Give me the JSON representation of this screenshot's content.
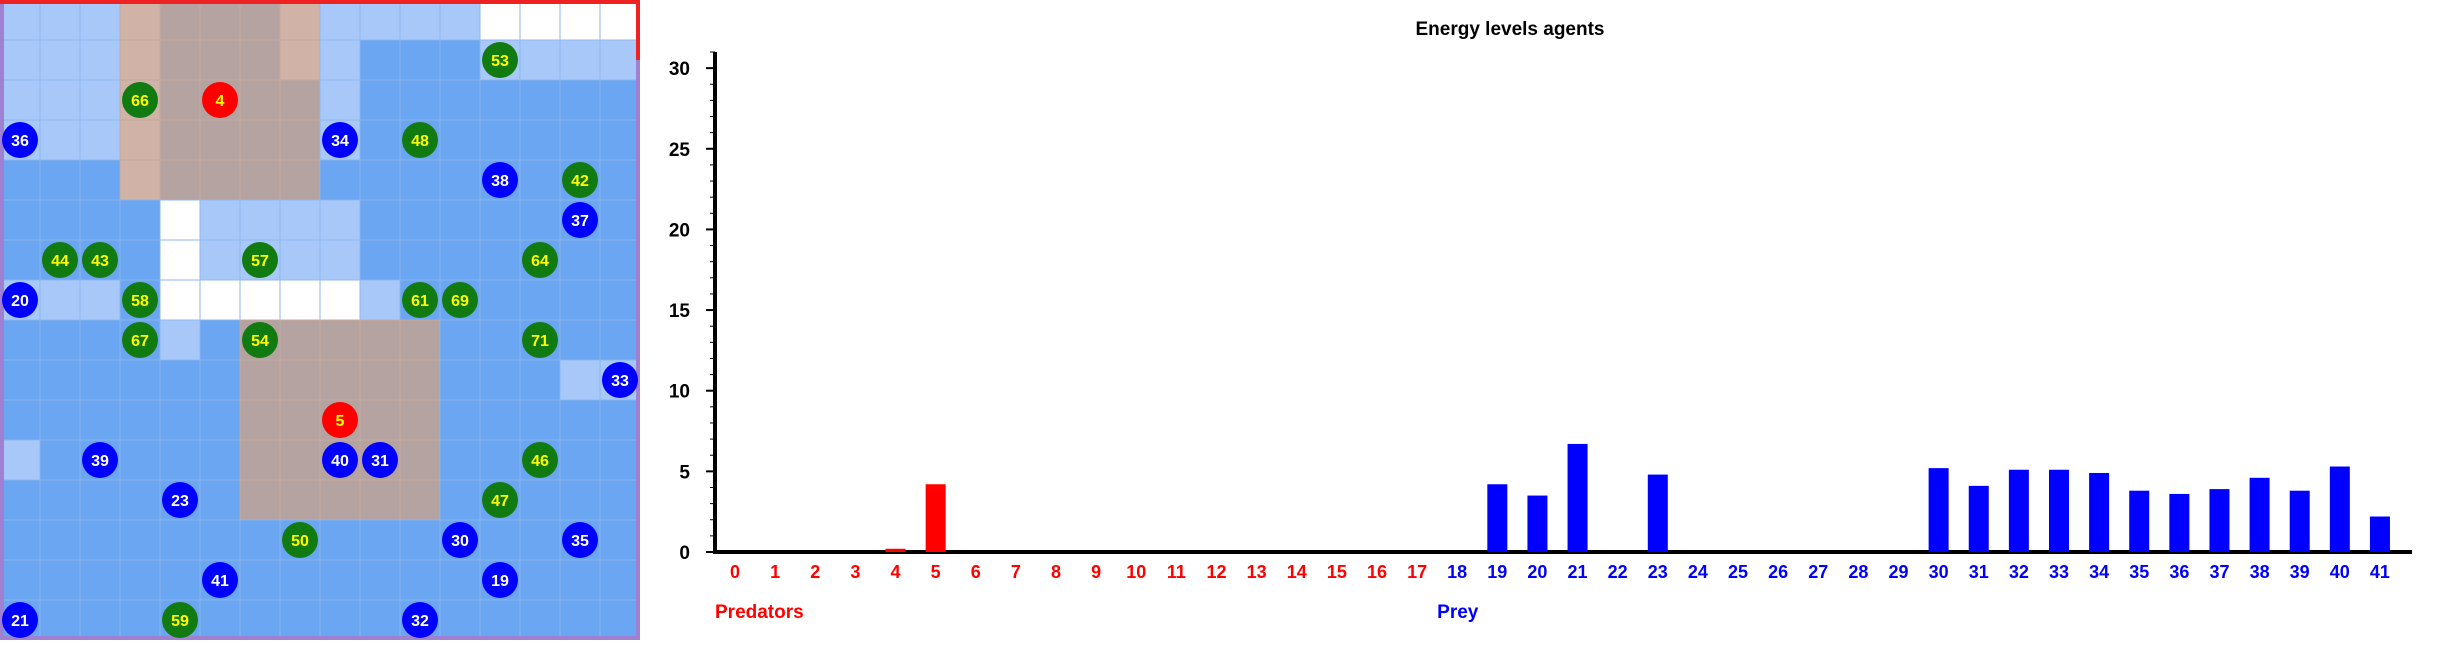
{
  "colors": {
    "predator": "#ff0000",
    "prey": "#0000ff",
    "grass_agent": "#117a11",
    "agent_label": "#ffff00",
    "prey_label": "#ffffff",
    "grid_border_top": "#ee2222",
    "grid_border_other": "#a080d0"
  },
  "grid": {
    "rows": 16,
    "cols": 16,
    "cell_levels": [
      [
        1,
        1,
        1,
        1,
        2,
        2,
        2,
        1,
        1,
        1,
        1,
        1,
        0,
        0,
        0,
        0
      ],
      [
        1,
        1,
        1,
        1,
        2,
        2,
        2,
        1,
        1,
        2,
        2,
        2,
        1,
        1,
        1,
        1
      ],
      [
        1,
        1,
        1,
        1,
        2,
        2,
        2,
        2,
        1,
        2,
        2,
        2,
        2,
        2,
        2,
        2
      ],
      [
        1,
        1,
        1,
        1,
        2,
        2,
        2,
        2,
        1,
        2,
        2,
        2,
        2,
        2,
        2,
        2
      ],
      [
        2,
        2,
        2,
        1,
        2,
        2,
        2,
        2,
        2,
        2,
        2,
        2,
        2,
        2,
        2,
        2
      ],
      [
        2,
        2,
        2,
        2,
        0,
        1,
        1,
        1,
        1,
        2,
        2,
        2,
        2,
        2,
        2,
        2
      ],
      [
        2,
        2,
        2,
        2,
        0,
        1,
        1,
        1,
        1,
        2,
        2,
        2,
        2,
        2,
        2,
        2
      ],
      [
        1,
        1,
        1,
        2,
        0,
        0,
        0,
        0,
        0,
        1,
        2,
        2,
        2,
        2,
        2,
        2
      ],
      [
        2,
        2,
        2,
        2,
        1,
        2,
        2,
        2,
        2,
        2,
        2,
        2,
        2,
        2,
        2,
        2
      ],
      [
        2,
        2,
        2,
        2,
        2,
        2,
        2,
        2,
        2,
        2,
        2,
        2,
        2,
        2,
        1,
        1
      ],
      [
        2,
        2,
        2,
        2,
        2,
        2,
        2,
        2,
        2,
        2,
        2,
        2,
        2,
        2,
        2,
        2
      ],
      [
        1,
        2,
        2,
        2,
        2,
        2,
        2,
        2,
        2,
        2,
        2,
        2,
        2,
        2,
        2,
        2
      ],
      [
        2,
        2,
        2,
        2,
        2,
        2,
        2,
        2,
        2,
        2,
        2,
        2,
        2,
        2,
        2,
        2
      ],
      [
        2,
        2,
        2,
        2,
        2,
        2,
        2,
        2,
        2,
        2,
        2,
        2,
        2,
        2,
        2,
        2
      ],
      [
        2,
        2,
        2,
        2,
        2,
        2,
        2,
        2,
        2,
        2,
        2,
        2,
        2,
        2,
        2,
        2
      ],
      [
        2,
        2,
        2,
        2,
        2,
        2,
        2,
        2,
        2,
        2,
        2,
        2,
        2,
        2,
        2,
        2
      ]
    ],
    "cell_colors": [
      "#ffffff",
      "#a8c8fa",
      "#6aa6f2"
    ],
    "predator_zone_color": "#f2a060",
    "predator_zones": [
      {
        "row": 0,
        "col": 3,
        "rows": 5,
        "cols": 5
      },
      {
        "row": 8,
        "col": 6,
        "rows": 5,
        "cols": 5
      }
    ],
    "agents": [
      {
        "id": "4",
        "kind": "predator",
        "row": 2,
        "col": 5
      },
      {
        "id": "5",
        "kind": "predator",
        "row": 10,
        "col": 8
      },
      {
        "id": "53",
        "kind": "grass",
        "row": 1,
        "col": 12
      },
      {
        "id": "66",
        "kind": "grass",
        "row": 2,
        "col": 3
      },
      {
        "id": "36",
        "kind": "prey",
        "row": 3,
        "col": 0
      },
      {
        "id": "34",
        "kind": "prey",
        "row": 3,
        "col": 8
      },
      {
        "id": "48",
        "kind": "grass",
        "row": 3,
        "col": 10
      },
      {
        "id": "38",
        "kind": "prey",
        "row": 4,
        "col": 12
      },
      {
        "id": "42",
        "kind": "grass",
        "row": 4,
        "col": 14
      },
      {
        "id": "37",
        "kind": "prey",
        "row": 5,
        "col": 14
      },
      {
        "id": "44",
        "kind": "grass",
        "row": 6,
        "col": 1
      },
      {
        "id": "43",
        "kind": "grass",
        "row": 6,
        "col": 2
      },
      {
        "id": "57",
        "kind": "grass",
        "row": 6,
        "col": 6
      },
      {
        "id": "64",
        "kind": "grass",
        "row": 6,
        "col": 13
      },
      {
        "id": "20",
        "kind": "prey",
        "row": 7,
        "col": 0
      },
      {
        "id": "58",
        "kind": "grass",
        "row": 7,
        "col": 3
      },
      {
        "id": "61",
        "kind": "grass",
        "row": 7,
        "col": 10
      },
      {
        "id": "69",
        "kind": "grass",
        "row": 7,
        "col": 11
      },
      {
        "id": "67",
        "kind": "grass",
        "row": 8,
        "col": 3
      },
      {
        "id": "54",
        "kind": "grass",
        "row": 8,
        "col": 6
      },
      {
        "id": "71",
        "kind": "grass",
        "row": 8,
        "col": 13
      },
      {
        "id": "33",
        "kind": "prey",
        "row": 9,
        "col": 15
      },
      {
        "id": "39",
        "kind": "prey",
        "row": 11,
        "col": 2
      },
      {
        "id": "40",
        "kind": "prey",
        "row": 11,
        "col": 8
      },
      {
        "id": "31",
        "kind": "prey",
        "row": 11,
        "col": 9
      },
      {
        "id": "46",
        "kind": "grass",
        "row": 11,
        "col": 13
      },
      {
        "id": "23",
        "kind": "prey",
        "row": 12,
        "col": 4
      },
      {
        "id": "47",
        "kind": "grass",
        "row": 12,
        "col": 12
      },
      {
        "id": "50",
        "kind": "grass",
        "row": 13,
        "col": 7
      },
      {
        "id": "30",
        "kind": "prey",
        "row": 13,
        "col": 11
      },
      {
        "id": "35",
        "kind": "prey",
        "row": 13,
        "col": 14
      },
      {
        "id": "41",
        "kind": "prey",
        "row": 14,
        "col": 5
      },
      {
        "id": "19",
        "kind": "prey",
        "row": 14,
        "col": 12
      },
      {
        "id": "21",
        "kind": "prey",
        "row": 15,
        "col": 0
      },
      {
        "id": "59",
        "kind": "grass",
        "row": 15,
        "col": 4
      },
      {
        "id": "32",
        "kind": "prey",
        "row": 15,
        "col": 10
      }
    ]
  },
  "chart_data": {
    "type": "bar",
    "title": "Energy levels agents",
    "xlabel": "",
    "ylabel": "",
    "ylim": [
      0,
      31
    ],
    "yticks": [
      0,
      5,
      10,
      15,
      20,
      25,
      30
    ],
    "grid": false,
    "categories": [
      "0",
      "1",
      "2",
      "3",
      "4",
      "5",
      "6",
      "7",
      "8",
      "9",
      "10",
      "11",
      "12",
      "13",
      "14",
      "15",
      "16",
      "17",
      "18",
      "19",
      "20",
      "21",
      "22",
      "23",
      "24",
      "25",
      "26",
      "27",
      "28",
      "29",
      "30",
      "31",
      "32",
      "33",
      "34",
      "35",
      "36",
      "37",
      "38",
      "39",
      "40",
      "41"
    ],
    "values": [
      0,
      0,
      0,
      0,
      0.2,
      4.2,
      0,
      0,
      0,
      0,
      0,
      0,
      0,
      0,
      0,
      0,
      0,
      0,
      0,
      4.2,
      3.5,
      6.7,
      0,
      4.8,
      0,
      0,
      0,
      0,
      0,
      0,
      5.2,
      4.1,
      5.1,
      5.1,
      4.9,
      3.8,
      3.6,
      3.9,
      4.6,
      3.8,
      5.3,
      2.2
    ],
    "groups": [
      {
        "name": "Predators",
        "from": 0,
        "to": 17,
        "color": "#ff0000"
      },
      {
        "name": "Prey",
        "from": 18,
        "to": 41,
        "color": "#0000ff"
      }
    ]
  }
}
